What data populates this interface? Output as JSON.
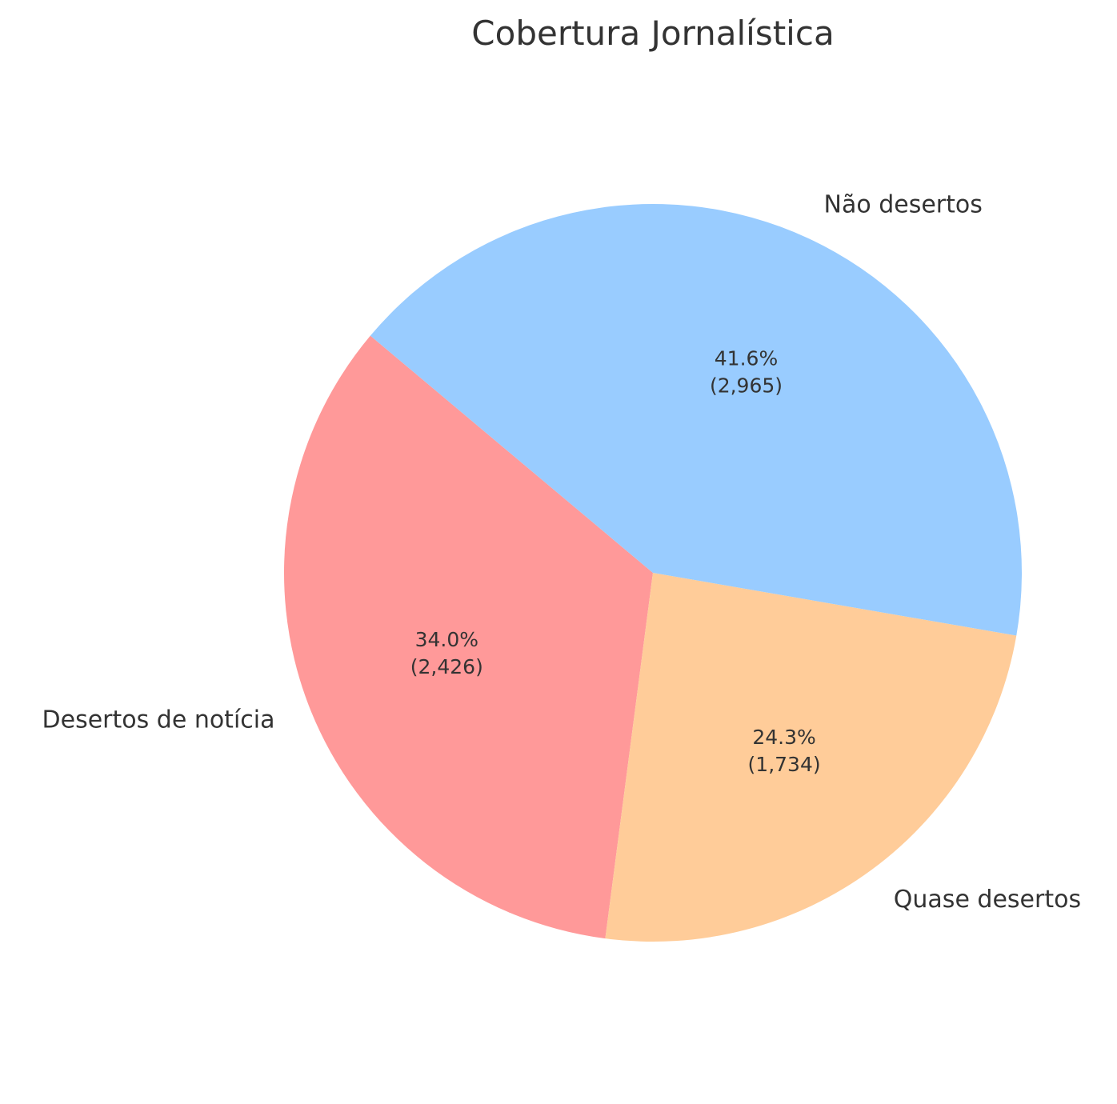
{
  "chart_data": {
    "type": "pie",
    "title": "Cobertura Jornalística",
    "start_angle_deg": 140,
    "direction": "counterclockwise",
    "slices": [
      {
        "label": "Desertos de notícia",
        "value": 2426,
        "percent": "34.0%",
        "count": "(2,426)",
        "color": "#ff9999"
      },
      {
        "label": "Quase desertos",
        "value": 1734,
        "percent": "24.3%",
        "count": "(1,734)",
        "color": "#ffcc99"
      },
      {
        "label": "Não desertos",
        "value": 2965,
        "percent": "41.6%",
        "count": "(2,965)",
        "color": "#99ccff"
      }
    ]
  }
}
